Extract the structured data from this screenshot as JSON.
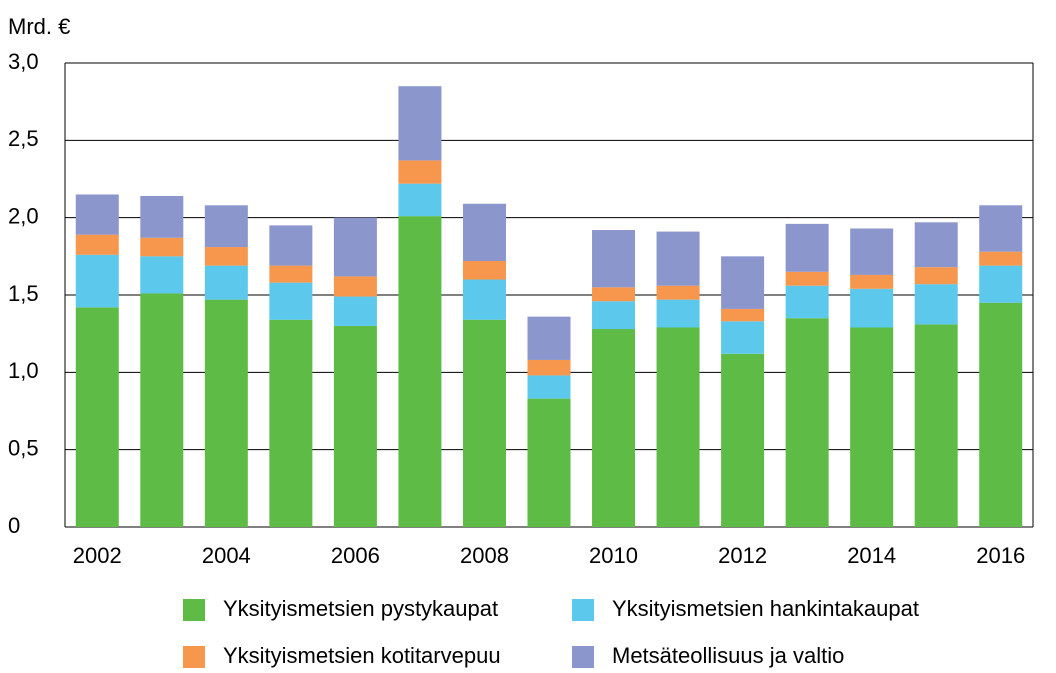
{
  "chart_data": {
    "type": "stacked_bar",
    "y_label": "Mrd. €",
    "categories": [
      "2002",
      null,
      "2004",
      null,
      "2006",
      null,
      "2008",
      null,
      "2010",
      null,
      "2012",
      null,
      "2014",
      null,
      "2016"
    ],
    "series": [
      {
        "name": "Yksityismetsien pystykaupat",
        "color": "#5dbb46",
        "values": [
          1.42,
          1.51,
          1.47,
          1.34,
          1.3,
          2.01,
          1.34,
          0.83,
          1.28,
          1.29,
          1.12,
          1.35,
          1.29,
          1.31,
          1.45
        ]
      },
      {
        "name": "Yksityismetsien hankintakaupat",
        "color": "#5bc8ec",
        "values": [
          0.34,
          0.24,
          0.22,
          0.24,
          0.19,
          0.21,
          0.26,
          0.15,
          0.18,
          0.18,
          0.21,
          0.21,
          0.25,
          0.26,
          0.24
        ]
      },
      {
        "name": "Yksityismetsien kotitarvepuu",
        "color": "#f7964d",
        "values": [
          0.13,
          0.12,
          0.12,
          0.11,
          0.13,
          0.15,
          0.12,
          0.1,
          0.09,
          0.09,
          0.08,
          0.09,
          0.09,
          0.11,
          0.09
        ]
      },
      {
        "name": "Metsäteollisuus ja valtio",
        "color": "#8b96cc",
        "values": [
          0.26,
          0.27,
          0.27,
          0.26,
          0.38,
          0.48,
          0.37,
          0.28,
          0.37,
          0.35,
          0.34,
          0.31,
          0.3,
          0.29,
          0.3
        ]
      }
    ],
    "ylim": [
      0,
      3
    ],
    "yticks": [
      0,
      {
        "value": 0.5,
        "label": "0,5"
      },
      {
        "value": 1,
        "label": "1,0"
      },
      {
        "value": 1.5,
        "label": "1,5"
      },
      {
        "value": 2,
        "label": "2,0"
      },
      {
        "value": 2.5,
        "label": "2,5"
      },
      {
        "value": 3,
        "label": "3,0"
      }
    ],
    "grid": true
  }
}
